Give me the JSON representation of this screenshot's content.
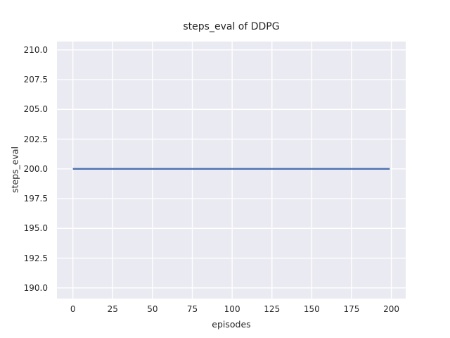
{
  "figure": {
    "background": "#FFFFFF"
  },
  "chart_data": {
    "type": "line",
    "title": "steps_eval of DDPG",
    "xlabel": "episodes",
    "ylabel": "steps_eval",
    "xlim": [
      -10,
      209
    ],
    "ylim": [
      189.1,
      210.7
    ],
    "grid": true,
    "legend": false,
    "plot_background": "#EAEAF2",
    "grid_color": "#FFFFFF",
    "text_color": "#262626",
    "xticks": {
      "values": [
        0,
        25,
        50,
        75,
        100,
        125,
        150,
        175,
        200
      ],
      "labels": [
        "0",
        "25",
        "50",
        "75",
        "100",
        "125",
        "150",
        "175",
        "200"
      ]
    },
    "yticks": {
      "values": [
        190.0,
        192.5,
        195.0,
        197.5,
        200.0,
        202.5,
        205.0,
        207.5,
        210.0
      ],
      "labels": [
        "190.0",
        "192.5",
        "195.0",
        "197.5",
        "200.0",
        "202.5",
        "205.0",
        "207.5",
        "210.0"
      ]
    },
    "series": [
      {
        "name": "steps_eval",
        "color": "#4C72B0",
        "line_width": 2.3,
        "points": [
          [
            0,
            200.0
          ],
          [
            199,
            200.0
          ]
        ]
      }
    ]
  }
}
